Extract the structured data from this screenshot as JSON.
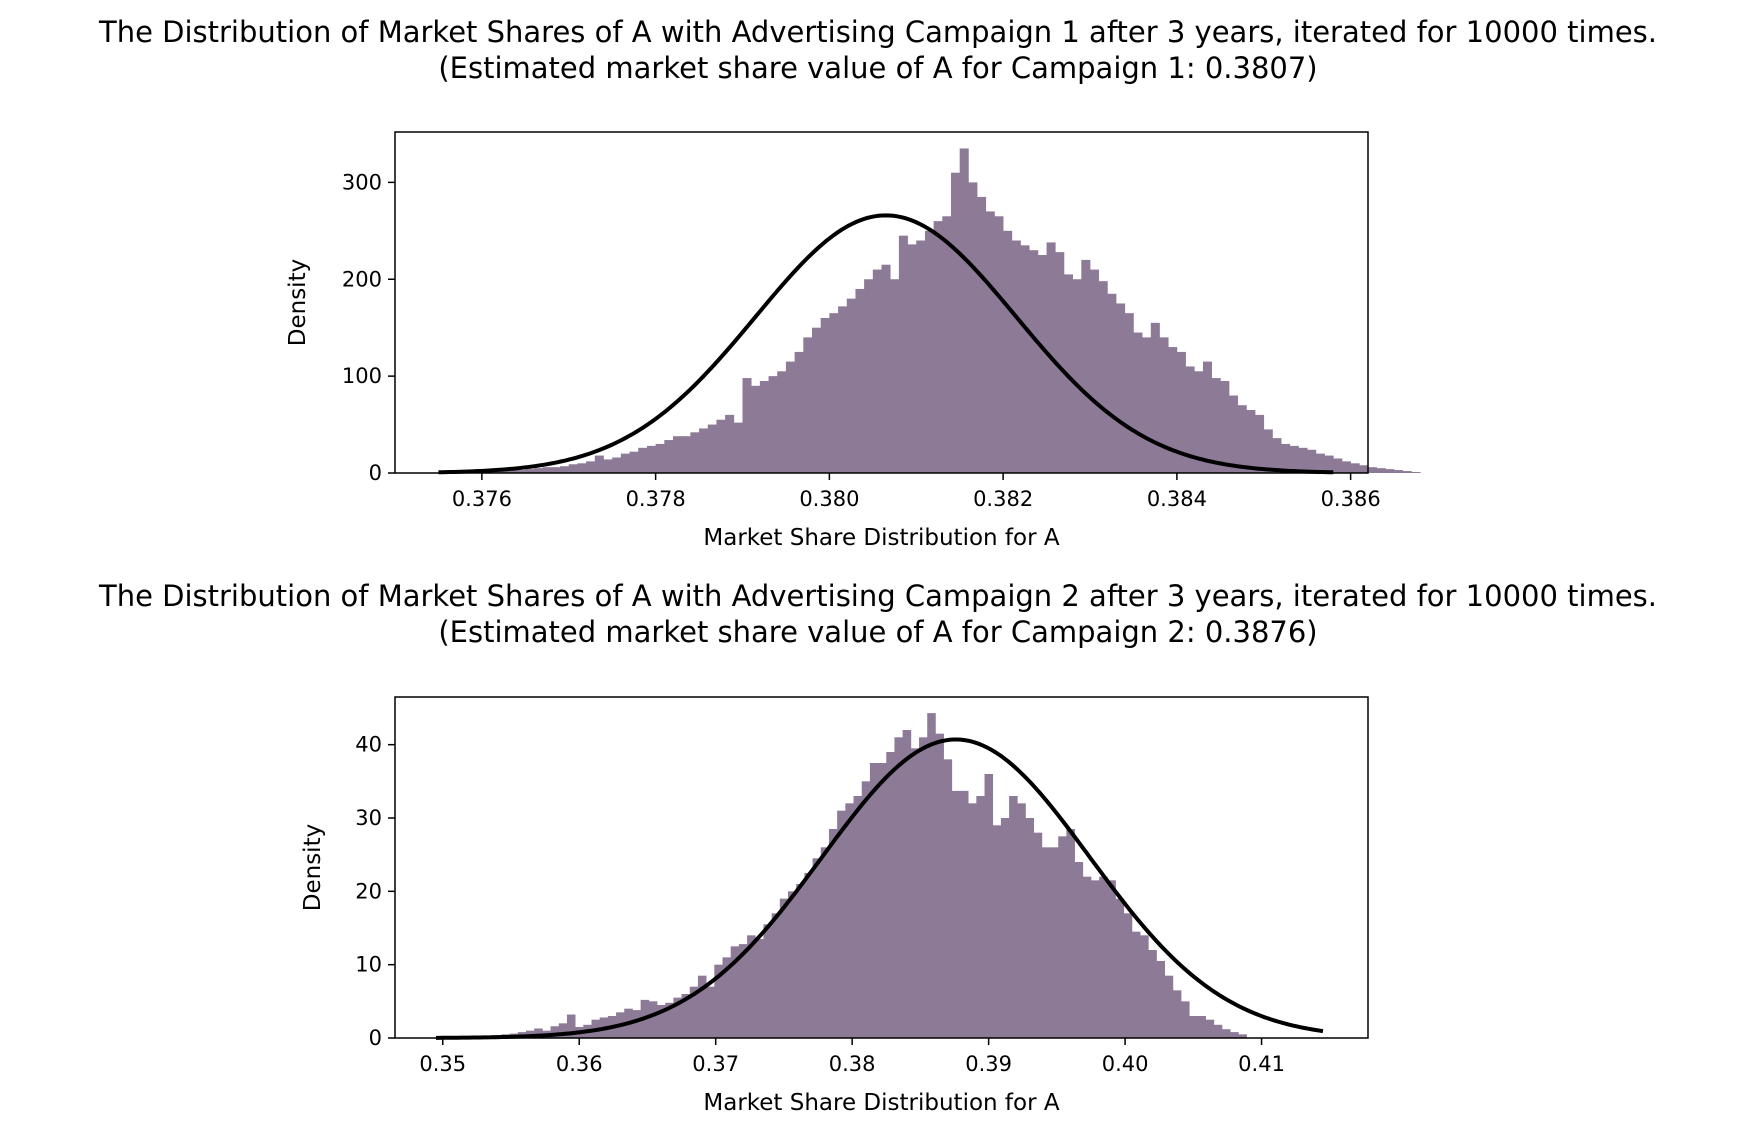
{
  "chart_data": [
    {
      "type": "bar",
      "title": "The Distribution of Market Shares of A with Advertising Campaign 1 after 3 years, iterated for 10000 times.",
      "subtitle": "(Estimated market share value of A for Campaign 1: 0.3807)",
      "xlabel": "Market Share Distribution for A",
      "ylabel": "Density",
      "xlim": [
        0.375,
        0.3862
      ],
      "ylim": [
        0,
        352
      ],
      "xticks": [
        0.376,
        0.378,
        0.38,
        0.382,
        0.384,
        0.386
      ],
      "xtick_labels": [
        "0.376",
        "0.378",
        "0.380",
        "0.382",
        "0.384",
        "0.386"
      ],
      "yticks": [
        0,
        100,
        200,
        300
      ],
      "ytick_labels": [
        "0",
        "100",
        "200",
        "300"
      ],
      "bar_color": "#8c7a96",
      "line_color": "#000000",
      "fit_curve": {
        "mean": 0.38065,
        "std": 0.0015,
        "x_range": [
          0.3755,
          0.3858
        ]
      },
      "histogram": {
        "start": 0.3755,
        "bin_width": 0.0001,
        "values": [
          1,
          1,
          1,
          2,
          2,
          2,
          2,
          3,
          3,
          3,
          4,
          5,
          6,
          6,
          7,
          9,
          10,
          12,
          18,
          14,
          16,
          20,
          22,
          26,
          28,
          30,
          34,
          38,
          38,
          42,
          46,
          50,
          55,
          60,
          52,
          98,
          90,
          95,
          100,
          105,
          115,
          125,
          140,
          150,
          160,
          165,
          172,
          180,
          190,
          200,
          210,
          215,
          200,
          245,
          236,
          240,
          250,
          260,
          265,
          310,
          335,
          300,
          285,
          270,
          265,
          250,
          240,
          235,
          230,
          225,
          238,
          228,
          205,
          200,
          220,
          210,
          198,
          185,
          175,
          165,
          145,
          140,
          155,
          140,
          130,
          125,
          110,
          105,
          115,
          98,
          95,
          80,
          70,
          65,
          60,
          45,
          36,
          30,
          28,
          26,
          24,
          20,
          18,
          15,
          12,
          10,
          8,
          6,
          5,
          4,
          3,
          2,
          1
        ]
      }
    },
    {
      "type": "bar",
      "title": "The Distribution of Market Shares of A with Advertising Campaign 2 after 3 years, iterated for 10000 times.",
      "subtitle": "(Estimated market share value of A for Campaign 2: 0.3876)",
      "xlabel": "Market Share Distribution for A",
      "ylabel": "Density",
      "xlim": [
        0.3465,
        0.4178
      ],
      "ylim": [
        0,
        46.5
      ],
      "xticks": [
        0.35,
        0.36,
        0.37,
        0.38,
        0.39,
        0.4,
        0.41
      ],
      "xtick_labels": [
        "0.35",
        "0.36",
        "0.37",
        "0.38",
        "0.39",
        "0.40",
        "0.41"
      ],
      "yticks": [
        0,
        10,
        20,
        30,
        40
      ],
      "ytick_labels": [
        "0",
        "10",
        "20",
        "30",
        "40"
      ],
      "bar_color": "#8c7a96",
      "line_color": "#000000",
      "fit_curve": {
        "mean": 0.3876,
        "std": 0.0098,
        "x_range": [
          0.3495,
          0.4145
        ]
      },
      "histogram": {
        "start": 0.3495,
        "bin_width": 0.0006,
        "values": [
          0.1,
          0.1,
          0.1,
          0.2,
          0.2,
          0.3,
          0.3,
          0.4,
          0.5,
          0.6,
          0.8,
          1.0,
          1.3,
          1.0,
          1.6,
          2.0,
          3.2,
          1.5,
          1.8,
          2.5,
          2.8,
          3.0,
          3.5,
          4.0,
          3.8,
          5.2,
          5.0,
          4.5,
          4.8,
          5.5,
          6.0,
          7.0,
          8.5,
          7.0,
          10.0,
          11.0,
          12.5,
          12.8,
          14.0,
          13.5,
          15.5,
          17.0,
          19.0,
          20.0,
          21.0,
          22.5,
          24.5,
          26.0,
          28.5,
          31.0,
          32.0,
          33.0,
          35.0,
          37.5,
          37.5,
          39.0,
          41.0,
          42.0,
          39.5,
          41.0,
          44.3,
          41.5,
          38.0,
          33.7,
          33.7,
          32.0,
          33.0,
          36.0,
          29.0,
          30.0,
          33.0,
          32.0,
          30.0,
          28.0,
          26.0,
          26.0,
          27.5,
          28.5,
          24.0,
          22.0,
          21.5,
          22.0,
          21.5,
          19.0,
          17.0,
          14.5,
          14.0,
          12.0,
          10.5,
          8.5,
          6.5,
          5.0,
          3.0,
          3.0,
          2.5,
          1.8,
          1.2,
          0.8,
          0.5
        ]
      }
    }
  ]
}
